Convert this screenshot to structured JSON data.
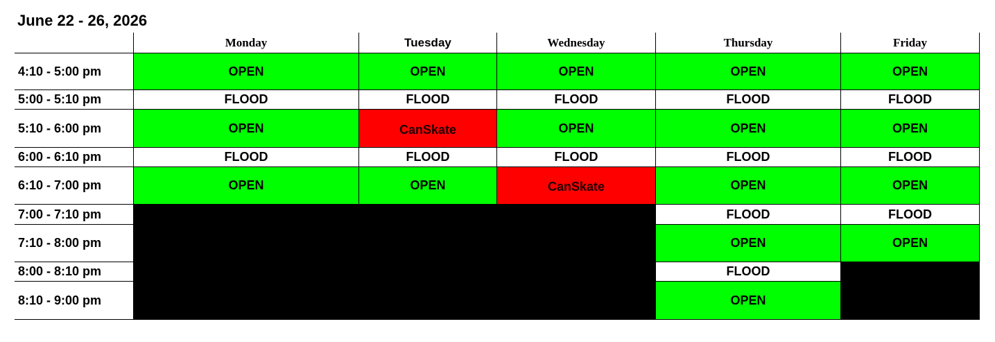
{
  "title": "June 22 - 26, 2026",
  "colors": {
    "open": "#00ff00",
    "flood": "#ffffff",
    "canskate": "#ff0000",
    "closed": "#000000"
  },
  "days": [
    {
      "label": "Monday",
      "font": "serif"
    },
    {
      "label": "Tuesday",
      "font": "sans"
    },
    {
      "label": "Wednesday",
      "font": "serif"
    },
    {
      "label": "Thursday",
      "font": "serif"
    },
    {
      "label": "Friday",
      "font": "serif"
    }
  ],
  "rows": [
    {
      "time": "4:10 - 5:00 pm",
      "cells": [
        {
          "label": "OPEN",
          "status": "open"
        },
        {
          "label": "OPEN",
          "status": "open"
        },
        {
          "label": "OPEN",
          "status": "open"
        },
        {
          "label": "OPEN",
          "status": "open"
        },
        {
          "label": "OPEN",
          "status": "open"
        }
      ]
    },
    {
      "time": "5:00 - 5:10 pm",
      "cells": [
        {
          "label": "FLOOD",
          "status": "flood"
        },
        {
          "label": "FLOOD",
          "status": "flood"
        },
        {
          "label": "FLOOD",
          "status": "flood"
        },
        {
          "label": "FLOOD",
          "status": "flood"
        },
        {
          "label": "FLOOD",
          "status": "flood"
        }
      ]
    },
    {
      "time": "5:10 - 6:00 pm",
      "cells": [
        {
          "label": "OPEN",
          "status": "open"
        },
        {
          "label": "CanSkate",
          "status": "canskate"
        },
        {
          "label": "OPEN",
          "status": "open"
        },
        {
          "label": "OPEN",
          "status": "open"
        },
        {
          "label": "OPEN",
          "status": "open"
        }
      ]
    },
    {
      "time": "6:00 - 6:10 pm",
      "cells": [
        {
          "label": "FLOOD",
          "status": "flood"
        },
        {
          "label": "FLOOD",
          "status": "flood"
        },
        {
          "label": "FLOOD",
          "status": "flood"
        },
        {
          "label": "FLOOD",
          "status": "flood"
        },
        {
          "label": "FLOOD",
          "status": "flood"
        }
      ]
    },
    {
      "time": "6:10 - 7:00 pm",
      "cells": [
        {
          "label": "OPEN",
          "status": "open"
        },
        {
          "label": "OPEN",
          "status": "open"
        },
        {
          "label": "CanSkate",
          "status": "canskate"
        },
        {
          "label": "OPEN",
          "status": "open"
        },
        {
          "label": "OPEN",
          "status": "open"
        }
      ]
    },
    {
      "time": "7:00 - 7:10 pm",
      "cells": [
        {
          "label": "",
          "status": "closed"
        },
        {
          "label": "",
          "status": "closed"
        },
        {
          "label": "",
          "status": "closed"
        },
        {
          "label": "FLOOD",
          "status": "flood"
        },
        {
          "label": "FLOOD",
          "status": "flood"
        }
      ]
    },
    {
      "time": "7:10 - 8:00 pm",
      "cells": [
        {
          "label": "",
          "status": "closed"
        },
        {
          "label": "",
          "status": "closed"
        },
        {
          "label": "",
          "status": "closed"
        },
        {
          "label": "OPEN",
          "status": "open"
        },
        {
          "label": "OPEN",
          "status": "open"
        }
      ]
    },
    {
      "time": "8:00 - 8:10 pm",
      "cells": [
        {
          "label": "",
          "status": "closed"
        },
        {
          "label": "",
          "status": "closed"
        },
        {
          "label": "",
          "status": "closed"
        },
        {
          "label": "FLOOD",
          "status": "flood"
        },
        {
          "label": "",
          "status": "closed"
        }
      ]
    },
    {
      "time": "8:10 - 9:00 pm",
      "cells": [
        {
          "label": "",
          "status": "closed"
        },
        {
          "label": "",
          "status": "closed"
        },
        {
          "label": "",
          "status": "closed"
        },
        {
          "label": "OPEN",
          "status": "open"
        },
        {
          "label": "",
          "status": "closed"
        }
      ]
    }
  ]
}
